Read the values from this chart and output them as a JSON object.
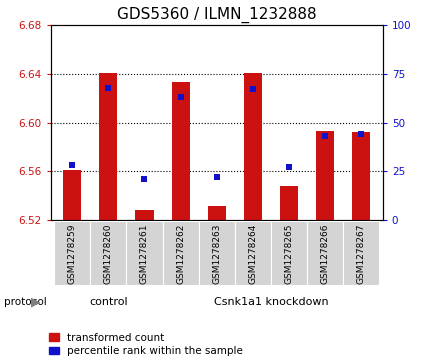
{
  "title": "GDS5360 / ILMN_1232888",
  "samples": [
    "GSM1278259",
    "GSM1278260",
    "GSM1278261",
    "GSM1278262",
    "GSM1278263",
    "GSM1278264",
    "GSM1278265",
    "GSM1278266",
    "GSM1278267"
  ],
  "transformed_count": [
    6.561,
    6.641,
    6.528,
    6.633,
    6.531,
    6.641,
    6.548,
    6.593,
    6.592
  ],
  "percentile_rank": [
    28,
    68,
    21,
    63,
    22,
    67,
    27,
    43,
    44
  ],
  "ylim_left": [
    6.52,
    6.68
  ],
  "ylim_right": [
    0,
    100
  ],
  "yticks_left": [
    6.52,
    6.56,
    6.6,
    6.64,
    6.68
  ],
  "yticks_right": [
    0,
    25,
    50,
    75,
    100
  ],
  "bar_color": "#cc1111",
  "marker_color": "#1111cc",
  "bar_width": 0.5,
  "ctrl_count": 3,
  "group_labels": [
    "control",
    "Csnk1a1 knockdown"
  ],
  "group_color": "#90ee90",
  "protocol_label": "protocol",
  "legend_items": [
    "transformed count",
    "percentile rank within the sample"
  ],
  "plot_bg_color": "#ffffff",
  "label_box_color": "#d4d4d4",
  "grid_color": "#000000",
  "title_fontsize": 11,
  "tick_fontsize": 7.5,
  "sample_fontsize": 6.5,
  "group_fontsize": 8,
  "legend_fontsize": 7.5
}
